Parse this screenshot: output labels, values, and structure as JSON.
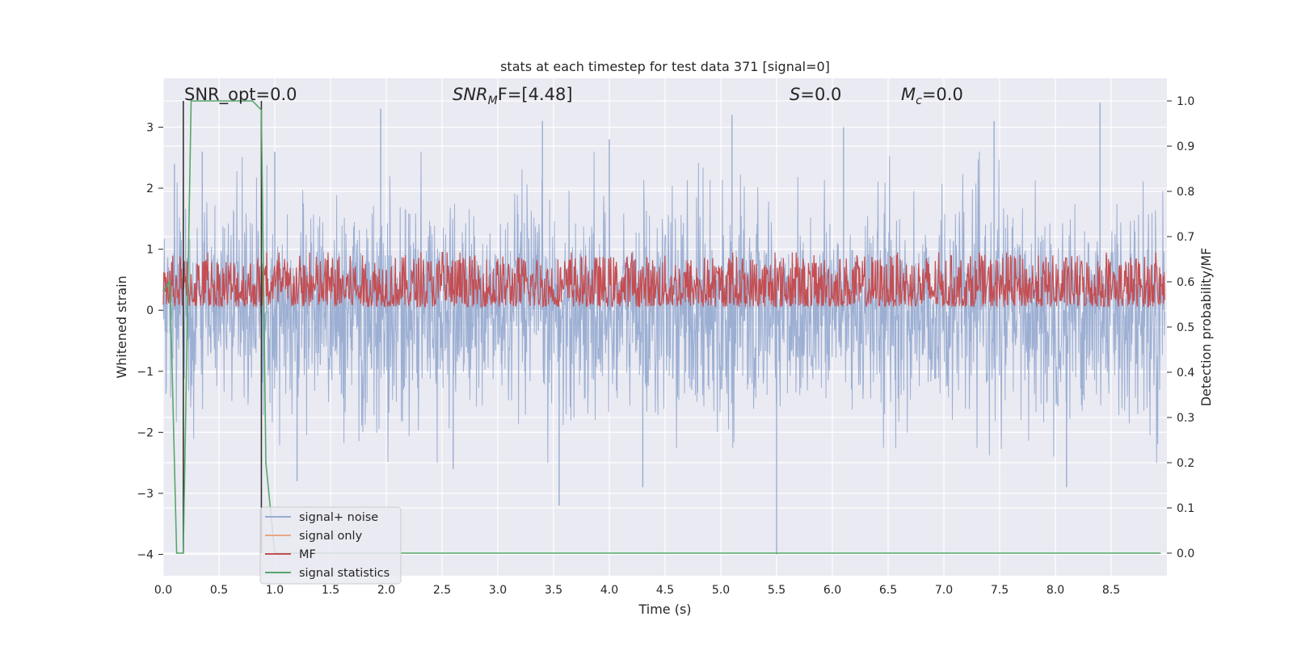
{
  "chart_data": {
    "type": "line",
    "title": "stats at each timestep for test data 371 [signal=0]",
    "xlabel": "Time (s)",
    "ylabel": "Whitened strain",
    "y2label": "Detection probability/MF",
    "xlim": [
      0.0,
      9.0
    ],
    "ylim": [
      -4.35,
      3.8
    ],
    "y2lim": [
      -0.05,
      1.05
    ],
    "xticks": [
      0.0,
      0.5,
      1.0,
      1.5,
      2.0,
      2.5,
      3.0,
      3.5,
      4.0,
      4.5,
      5.0,
      5.5,
      6.0,
      6.5,
      7.0,
      7.5,
      8.0,
      8.5
    ],
    "xtick_labels": [
      "0.0",
      "0.5",
      "1.0",
      "1.5",
      "2.0",
      "2.5",
      "3.0",
      "3.5",
      "4.0",
      "4.5",
      "5.0",
      "5.5",
      "6.0",
      "6.5",
      "7.0",
      "7.5",
      "8.0",
      "8.5"
    ],
    "yticks": [
      3,
      2,
      1,
      0,
      -1,
      -2,
      -3,
      -4
    ],
    "ytick_labels": [
      "3",
      "2",
      "1",
      "0",
      "−1",
      "−2",
      "−3",
      "−4"
    ],
    "y2ticks": [
      1.0,
      0.9,
      0.8,
      0.7,
      0.6,
      0.5,
      0.4,
      0.3,
      0.2,
      0.1,
      0.0
    ],
    "y2tick_labels": [
      "1.0",
      "0.9",
      "0.8",
      "0.7",
      "0.6",
      "0.5",
      "0.4",
      "0.3",
      "0.2",
      "0.1",
      "0.0"
    ],
    "grid": true,
    "legend_position": "lower-left",
    "annotations": {
      "snr_opt": "SNR_opt=0.0",
      "snr_mf_label": "SNR",
      "snr_mf_sub": "M",
      "snr_mf_rest": "F=[4.48]",
      "s_label": "S",
      "s_rest": "=0.0",
      "mc_label": "M",
      "mc_sub": "c",
      "mc_rest": "=0.0"
    },
    "series": [
      {
        "name": "signal+ noise",
        "color": "#98acd1",
        "description_range": [
          -2.5,
          2.6
        ],
        "axis": "left",
        "spikes": [
          [
            0.1,
            2.4
          ],
          [
            0.35,
            2.6
          ],
          [
            1.0,
            2.6
          ],
          [
            1.2,
            -2.8
          ],
          [
            1.95,
            3.3
          ],
          [
            2.6,
            -2.6
          ],
          [
            3.4,
            3.1
          ],
          [
            3.55,
            -3.2
          ],
          [
            4.0,
            2.8
          ],
          [
            4.3,
            -2.9
          ],
          [
            5.1,
            3.2
          ],
          [
            5.5,
            -4.0
          ],
          [
            6.1,
            3.0
          ],
          [
            7.45,
            3.1
          ],
          [
            8.1,
            -2.9
          ],
          [
            8.4,
            3.4
          ]
        ]
      },
      {
        "name": "signal only",
        "color": "#e8a783",
        "axis": "left",
        "values": []
      },
      {
        "name": "MF",
        "color": "#c44e52",
        "axis": "right",
        "baseline": 0.57,
        "range": [
          0.545,
          0.66
        ],
        "peak_value": 0.665
      },
      {
        "name": "signal statistics",
        "color": "#55a868",
        "axis": "right",
        "x": [
          0.0,
          0.06,
          0.12,
          0.18,
          0.25,
          0.8,
          0.88,
          0.92,
          1.0,
          8.94
        ],
        "values": [
          0.58,
          0.6,
          0.0,
          0.0,
          1.0,
          1.0,
          0.98,
          0.2,
          0.0,
          0.0
        ]
      }
    ],
    "vertical_markers": [
      0.18,
      0.88
    ]
  }
}
